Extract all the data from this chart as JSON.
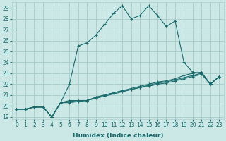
{
  "xlabel": "Humidex (Indice chaleur)",
  "background_color": "#cce8e6",
  "grid_color": "#aacfcd",
  "line_color": "#1a6b6b",
  "xlim": [
    -0.5,
    23.5
  ],
  "ylim": [
    18.8,
    29.5
  ],
  "yticks": [
    19,
    20,
    21,
    22,
    23,
    24,
    25,
    26,
    27,
    28,
    29
  ],
  "xticks": [
    0,
    1,
    2,
    3,
    4,
    5,
    6,
    7,
    8,
    9,
    10,
    11,
    12,
    13,
    14,
    15,
    16,
    17,
    18,
    19,
    20,
    21,
    22,
    23
  ],
  "series": [
    [
      19.7,
      19.7,
      19.9,
      19.9,
      19.0,
      20.3,
      22.0,
      25.5,
      25.8,
      26.5,
      27.5,
      28.5,
      29.2,
      28.0,
      28.3,
      29.2,
      28.3,
      27.3,
      27.8,
      24.0,
      23.1,
      23.0,
      22.0,
      22.7
    ],
    [
      19.7,
      19.7,
      19.9,
      19.9,
      19.0,
      20.3,
      20.5,
      20.5,
      20.5,
      20.8,
      21.0,
      21.2,
      21.4,
      21.6,
      21.8,
      22.0,
      22.2,
      22.3,
      22.5,
      22.8,
      23.0,
      23.1,
      22.0,
      22.7
    ],
    [
      19.7,
      19.7,
      19.9,
      19.9,
      19.0,
      20.3,
      20.4,
      20.5,
      20.5,
      20.8,
      21.0,
      21.2,
      21.4,
      21.5,
      21.7,
      21.9,
      22.1,
      22.2,
      22.4,
      22.6,
      22.8,
      23.0,
      22.0,
      22.7
    ],
    [
      19.7,
      19.7,
      19.9,
      19.9,
      19.0,
      20.3,
      20.3,
      20.4,
      20.5,
      20.7,
      20.9,
      21.1,
      21.3,
      21.5,
      21.7,
      21.8,
      22.0,
      22.1,
      22.3,
      22.5,
      22.7,
      22.9,
      22.0,
      22.7
    ]
  ]
}
